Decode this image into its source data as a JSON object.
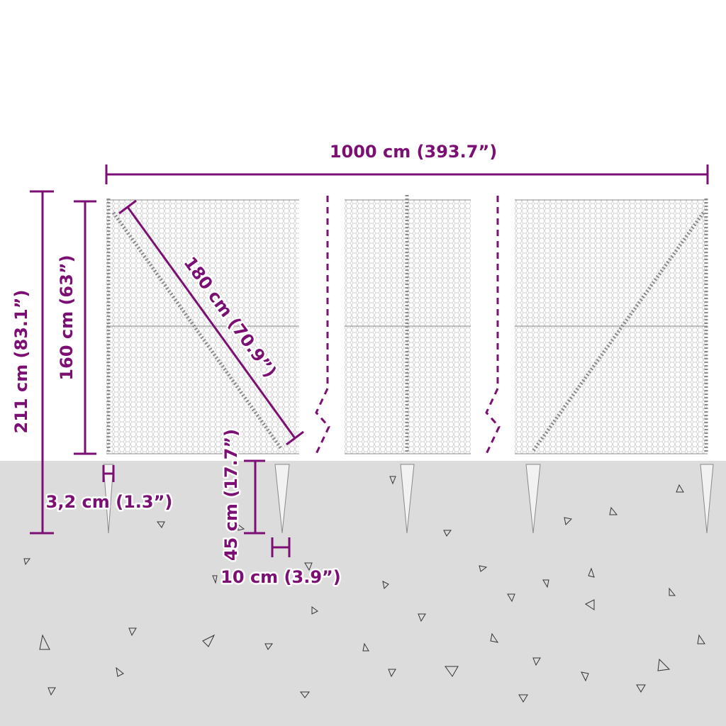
{
  "colors": {
    "dimension": "#7b0f73",
    "ground": "#dcdcdc",
    "mesh": "#9a9a9a"
  },
  "labels": {
    "total_length": "1000 cm (393.7”)",
    "total_height": "211 cm (83.1”)",
    "fence_height": "160 cm (63”)",
    "brace_length": "180 cm (70.9”)",
    "post_diameter": "3,2 cm (1.3”)",
    "spike_depth": "45 cm (17.7”)",
    "spike_width": "10 cm (3.9”)"
  }
}
